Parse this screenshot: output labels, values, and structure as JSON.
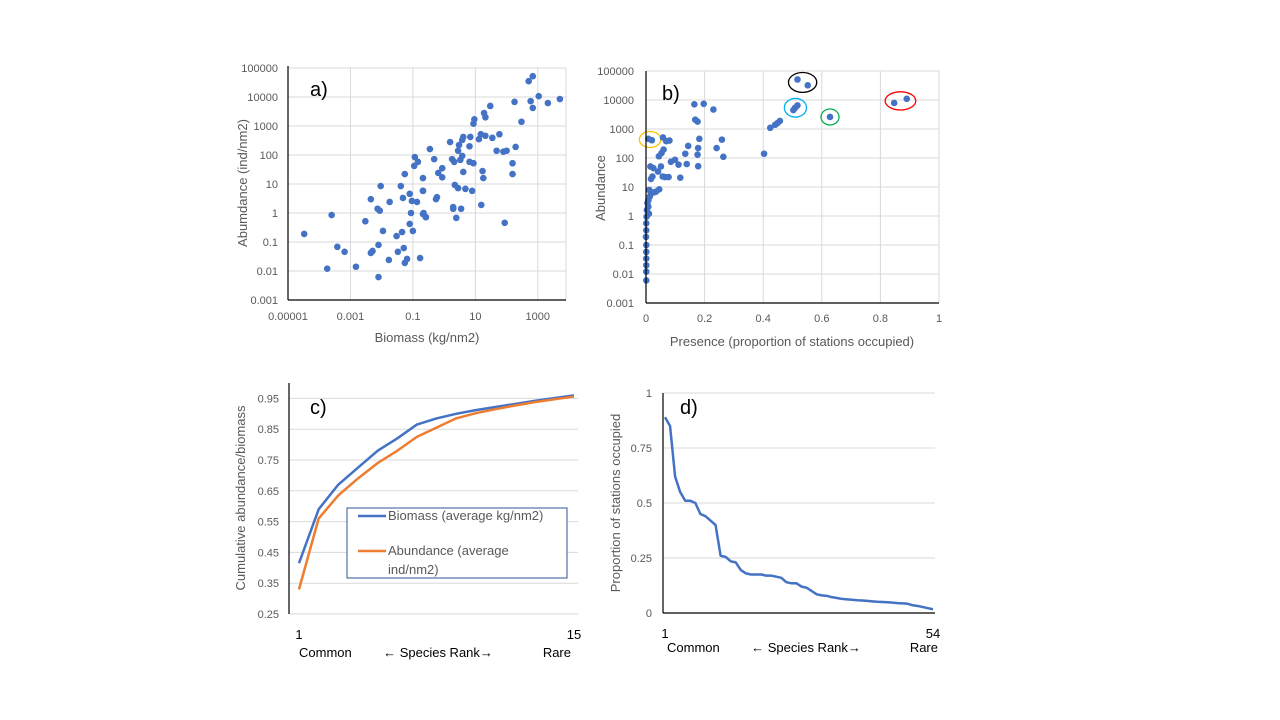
{
  "chart_data": [
    {
      "id": "a",
      "type": "scatter",
      "panel_label": "a)",
      "title": "",
      "xlabel": "Biomass (kg/nm2)",
      "ylabel": "Abumdance  (ind/nm2)",
      "xscale": "log",
      "yscale": "log",
      "xlim": [
        1e-05,
        8000
      ],
      "ylim": [
        0.001,
        100000
      ],
      "xticks": [
        "0.00001",
        "0.001",
        "0.1",
        "10",
        "1000"
      ],
      "xtick_values": [
        1e-05,
        0.001,
        0.1,
        10,
        1000
      ],
      "yticks": [
        "0.001",
        "0.01",
        "0.1",
        "1",
        "10",
        "100",
        "1000",
        "10000",
        "100000"
      ],
      "ytick_values": [
        0.001,
        0.01,
        0.1,
        1,
        10,
        100,
        1000,
        10000,
        100000
      ],
      "grid": true,
      "color": "#4472C4",
      "points": [
        [
          3.3e-05,
          0.19
        ],
        [
          0.00025,
          0.85
        ],
        [
          0.00018,
          0.012
        ],
        [
          0.00038,
          0.068
        ],
        [
          0.00065,
          0.046
        ],
        [
          0.0015,
          0.014
        ],
        [
          0.003,
          0.52
        ],
        [
          0.0045,
          3.0
        ],
        [
          0.0093,
          8.5
        ],
        [
          0.0074,
          1.4
        ],
        [
          0.0087,
          1.2
        ],
        [
          0.0045,
          0.042
        ],
        [
          0.0051,
          0.049
        ],
        [
          0.0079,
          0.0062
        ],
        [
          0.0079,
          0.079
        ],
        [
          0.011,
          0.24
        ],
        [
          0.018,
          2.4
        ],
        [
          0.017,
          0.024
        ],
        [
          0.03,
          0.16
        ],
        [
          0.033,
          0.046
        ],
        [
          0.045,
          0.22
        ],
        [
          0.041,
          8.5
        ],
        [
          0.048,
          3.3
        ],
        [
          0.051,
          0.062
        ],
        [
          0.055,
          22
        ],
        [
          0.055,
          0.019
        ],
        [
          0.065,
          0.026
        ],
        [
          0.079,
          0.42
        ],
        [
          0.079,
          4.6
        ],
        [
          0.087,
          1.0
        ],
        [
          0.093,
          2.6
        ],
        [
          0.1,
          0.24
        ],
        [
          0.11,
          42
        ],
        [
          0.115,
          85
        ],
        [
          0.135,
          2.4
        ],
        [
          0.145,
          58
        ],
        [
          0.17,
          0.028
        ],
        [
          0.21,
          0.92
        ],
        [
          0.21,
          5.8
        ],
        [
          0.26,
          0.72
        ],
        [
          690,
          52000
        ],
        [
          510,
          35000
        ],
        [
          1070,
          10700
        ],
        [
          590,
          7200
        ],
        [
          690,
          4200
        ],
        [
          2100,
          6200
        ],
        [
          5100,
          8500
        ],
        [
          180,
          6800
        ],
        [
          300,
          1400
        ],
        [
          30,
          4900
        ],
        [
          21,
          2000
        ],
        [
          19,
          2800
        ],
        [
          9.3,
          1700
        ],
        [
          8.7,
          1200
        ],
        [
          59,
          520
        ],
        [
          35,
          390
        ],
        [
          21,
          460
        ],
        [
          15,
          520
        ],
        [
          13,
          350
        ],
        [
          6.9,
          420
        ],
        [
          4.1,
          420
        ],
        [
          3.8,
          330
        ],
        [
          1.55,
          280
        ],
        [
          6.5,
          200
        ],
        [
          3.0,
          220
        ],
        [
          2.8,
          140
        ],
        [
          195,
          190
        ],
        [
          100,
          140
        ],
        [
          79,
          130
        ],
        [
          48,
          140
        ],
        [
          0.35,
          160
        ],
        [
          0.48,
          72
        ],
        [
          1.8,
          72
        ],
        [
          2.1,
          58
        ],
        [
          3.3,
          68
        ],
        [
          3.8,
          93
        ],
        [
          6.5,
          58
        ],
        [
          8.7,
          52
        ],
        [
          155,
          52
        ],
        [
          155,
          22
        ],
        [
          17,
          28
        ],
        [
          18,
          16
        ],
        [
          4.1,
          26
        ],
        [
          0.87,
          35
        ],
        [
          0.65,
          24
        ],
        [
          0.87,
          17
        ],
        [
          0.21,
          16
        ],
        [
          0.21,
          5.8
        ],
        [
          2.2,
          9.3
        ],
        [
          2.8,
          7.2
        ],
        [
          4.8,
          6.8
        ],
        [
          7.9,
          5.8
        ],
        [
          0.59,
          3.5
        ],
        [
          0.55,
          3.0
        ],
        [
          1.95,
          1.6
        ],
        [
          1.95,
          1.4
        ],
        [
          3.5,
          1.4
        ],
        [
          15.5,
          1.9
        ],
        [
          2.45,
          0.68
        ],
        [
          87,
          0.46
        ],
        [
          0.22,
          1.0
        ],
        [
          0.26,
          0.72
        ]
      ]
    },
    {
      "id": "b",
      "type": "scatter",
      "panel_label": "b)",
      "title": "",
      "xlabel": "Presence (proportion  of stations occupied)",
      "ylabel": "Abundance",
      "xscale": "linear",
      "yscale": "log",
      "xlim": [
        0,
        1
      ],
      "ylim": [
        0.001,
        100000
      ],
      "xticks": [
        "0",
        "0.2",
        "0.4",
        "0.6",
        "0.8",
        "1"
      ],
      "xtick_values": [
        0,
        0.2,
        0.4,
        0.6,
        0.8,
        1
      ],
      "yticks": [
        "0.001",
        "0.01",
        "0.1",
        "1",
        "10",
        "100",
        "1000",
        "10000",
        "100000"
      ],
      "ytick_values": [
        0.001,
        0.01,
        0.1,
        1,
        10,
        100,
        1000,
        10000,
        100000
      ],
      "grid": true,
      "color": "#4472C4",
      "points": [
        [
          0.517,
          51000
        ],
        [
          0.552,
          32000
        ],
        [
          0.847,
          7900
        ],
        [
          0.89,
          11000
        ],
        [
          0.503,
          4500
        ],
        [
          0.509,
          5400
        ],
        [
          0.517,
          6500
        ],
        [
          0.628,
          2600
        ],
        [
          0.424,
          1100
        ],
        [
          0.441,
          1400
        ],
        [
          0.449,
          1600
        ],
        [
          0.457,
          1900
        ],
        [
          0.403,
          140
        ],
        [
          0.165,
          7100
        ],
        [
          0.197,
          7400
        ],
        [
          0.23,
          4700
        ],
        [
          0.168,
          2100
        ],
        [
          0.176,
          1800
        ],
        [
          0.259,
          430
        ],
        [
          0.264,
          110
        ],
        [
          0.241,
          220
        ],
        [
          0.182,
          460
        ],
        [
          0.178,
          220
        ],
        [
          0.176,
          130
        ],
        [
          0.178,
          52
        ],
        [
          0.144,
          260
        ],
        [
          0.139,
          62
        ],
        [
          0.134,
          140
        ],
        [
          0.117,
          21
        ],
        [
          0.111,
          59
        ],
        [
          0.099,
          87
        ],
        [
          0.085,
          74
        ],
        [
          0.077,
          22
        ],
        [
          0.08,
          400
        ],
        [
          0.069,
          380
        ],
        [
          0.058,
          510
        ],
        [
          0.06,
          195
        ],
        [
          0.053,
          148
        ],
        [
          0.044,
          115
        ],
        [
          0.051,
          51
        ],
        [
          0.057,
          23
        ],
        [
          0.065,
          22
        ],
        [
          0.041,
          34
        ],
        [
          0.025,
          45
        ],
        [
          0.015,
          51
        ],
        [
          0.017,
          19
        ],
        [
          0.022,
          23
        ],
        [
          0.008,
          460
        ],
        [
          0.02,
          410
        ],
        [
          0.045,
          8.3
        ],
        [
          0.034,
          6.9
        ],
        [
          0.026,
          6.5
        ],
        [
          0.017,
          6.0
        ],
        [
          0.013,
          4.7
        ],
        [
          0.008,
          3.5
        ],
        [
          0.011,
          7.9
        ],
        [
          0.005,
          2.8
        ],
        [
          0.003,
          1.6
        ],
        [
          0.002,
          0.95
        ],
        [
          0.001,
          0.56
        ],
        [
          0.001,
          0.32
        ],
        [
          0.0,
          0.19
        ],
        [
          0.001,
          0.1
        ],
        [
          0.001,
          0.058
        ],
        [
          0.001,
          0.034
        ],
        [
          0.001,
          0.02
        ],
        [
          0.001,
          0.012
        ],
        [
          0.001,
          0.006
        ],
        [
          0.008,
          2.1
        ],
        [
          0.01,
          1.2
        ]
      ],
      "annotations": [
        {
          "shape": "ellipse",
          "color": "#000000",
          "around": [
            [
              0.517,
              51000
            ],
            [
              0.552,
              32000
            ]
          ]
        },
        {
          "shape": "ellipse",
          "color": "#FF0000",
          "around": [
            [
              0.847,
              7900
            ],
            [
              0.89,
              11000
            ]
          ]
        },
        {
          "shape": "ellipse",
          "color": "#00B0F0",
          "around": [
            [
              0.503,
              4500
            ],
            [
              0.517,
              6500
            ]
          ]
        },
        {
          "shape": "ellipse",
          "color": "#00B050",
          "around": [
            [
              0.628,
              2600
            ]
          ]
        },
        {
          "shape": "ellipse",
          "color": "#FFC000",
          "around": [
            [
              0.008,
              460
            ],
            [
              0.02,
              410
            ]
          ]
        }
      ]
    },
    {
      "id": "c",
      "type": "line",
      "panel_label": "c)",
      "title": "",
      "xlabel": "",
      "ylabel": "Cumulative abundance/biomass",
      "xlim": [
        1,
        15
      ],
      "ylim": [
        0.25,
        1.0
      ],
      "x": [
        1,
        2,
        3,
        4,
        5,
        6,
        7,
        8,
        9,
        10,
        11,
        12,
        13,
        14,
        15
      ],
      "xticks": [
        "1",
        "15"
      ],
      "xtick_values": [
        1,
        15
      ],
      "yticks": [
        "0.25",
        "0.35",
        "0.45",
        "0.55",
        "0.65",
        "0.75",
        "0.85",
        "0.95"
      ],
      "ytick_values": [
        0.25,
        0.35,
        0.45,
        0.55,
        0.65,
        0.75,
        0.85,
        0.95
      ],
      "x_annotations": {
        "left": "Common",
        "middle": "← Species Rank→",
        "right": "Rare"
      },
      "grid": true,
      "legend_position": "center-right",
      "series": [
        {
          "name": "Biomass (average kg/nm2)",
          "color": "#4472C4",
          "values": [
            0.415,
            0.59,
            0.67,
            0.725,
            0.78,
            0.82,
            0.865,
            0.885,
            0.9,
            0.912,
            0.922,
            0.932,
            0.942,
            0.951,
            0.96
          ]
        },
        {
          "name": "Abundance (average ind/nm2)",
          "color": "#ED7D31",
          "values": [
            0.33,
            0.56,
            0.635,
            0.69,
            0.74,
            0.78,
            0.825,
            0.855,
            0.885,
            0.902,
            0.915,
            0.927,
            0.938,
            0.947,
            0.956
          ]
        }
      ],
      "legend_lines": [
        [
          "Biomass (average kg/nm2)"
        ],
        [
          "Abundance (average",
          "ind/nm2)"
        ]
      ]
    },
    {
      "id": "d",
      "type": "line",
      "panel_label": "d)",
      "title": "",
      "xlabel": "",
      "ylabel": "Proportion  of stations occupied",
      "xlim": [
        1,
        54
      ],
      "ylim": [
        0,
        1
      ],
      "xticks": [
        "1",
        "54"
      ],
      "xtick_values": [
        1,
        54
      ],
      "yticks": [
        "0",
        "0.25",
        "0.5",
        "0.75",
        "1"
      ],
      "ytick_values": [
        0,
        0.25,
        0.5,
        0.75,
        1
      ],
      "x_annotations": {
        "left": "Common",
        "middle": "← Species Rank→",
        "right": "Rare"
      },
      "grid": true,
      "series": [
        {
          "name": "Proportion of stations occupied",
          "color": "#4472C4",
          "values": [
            0.89,
            0.85,
            0.62,
            0.55,
            0.51,
            0.51,
            0.5,
            0.45,
            0.44,
            0.42,
            0.4,
            0.26,
            0.255,
            0.235,
            0.23,
            0.195,
            0.18,
            0.175,
            0.175,
            0.175,
            0.17,
            0.17,
            0.165,
            0.16,
            0.14,
            0.135,
            0.135,
            0.12,
            0.115,
            0.1,
            0.085,
            0.08,
            0.078,
            0.072,
            0.068,
            0.064,
            0.062,
            0.06,
            0.058,
            0.057,
            0.055,
            0.053,
            0.051,
            0.05,
            0.049,
            0.047,
            0.045,
            0.044,
            0.042,
            0.035,
            0.032,
            0.027,
            0.022,
            0.017
          ]
        }
      ]
    }
  ]
}
